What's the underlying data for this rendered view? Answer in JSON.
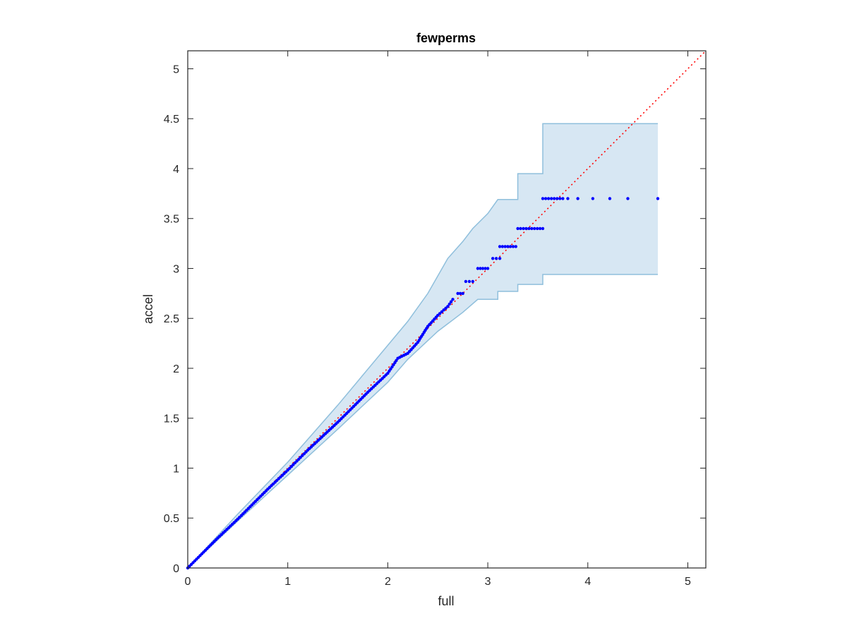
{
  "chart_data": {
    "type": "scatter",
    "title": "fewperms",
    "xlabel": "full",
    "ylabel": "accel",
    "xlim": [
      0,
      5.18
    ],
    "ylim": [
      0,
      5.18
    ],
    "xticks": [
      0,
      1,
      2,
      3,
      4,
      5
    ],
    "yticks": [
      0,
      0.5,
      1,
      1.5,
      2,
      2.5,
      3,
      3.5,
      4,
      4.5,
      5
    ],
    "xtick_labels": [
      "0",
      "1",
      "2",
      "3",
      "4",
      "5"
    ],
    "ytick_labels": [
      "0",
      "0.5",
      "1",
      "1.5",
      "2",
      "2.5",
      "3",
      "3.5",
      "4",
      "4.5",
      "5"
    ],
    "grid": false,
    "box": true,
    "reference_line": {
      "style": "dotted",
      "from": [
        0,
        0
      ],
      "to": [
        5.18,
        5.18
      ]
    },
    "band_upper": [
      [
        0,
        0
      ],
      [
        0.5,
        0.54
      ],
      [
        1,
        1.06
      ],
      [
        1.5,
        1.63
      ],
      [
        1.9,
        2.11
      ],
      [
        2.2,
        2.47
      ],
      [
        2.4,
        2.75
      ],
      [
        2.6,
        3.1
      ],
      [
        2.75,
        3.27
      ],
      [
        2.85,
        3.4
      ],
      [
        3.0,
        3.55
      ],
      [
        3.1,
        3.69
      ],
      [
        3.3,
        3.69
      ],
      [
        3.3,
        3.95
      ],
      [
        3.55,
        3.95
      ],
      [
        3.55,
        4.45
      ],
      [
        4.7,
        4.45
      ]
    ],
    "band_lower": [
      [
        4.7,
        2.94
      ],
      [
        3.55,
        2.94
      ],
      [
        3.55,
        2.84
      ],
      [
        3.3,
        2.84
      ],
      [
        3.3,
        2.77
      ],
      [
        3.1,
        2.77
      ],
      [
        3.1,
        2.69
      ],
      [
        2.9,
        2.69
      ],
      [
        2.75,
        2.56
      ],
      [
        2.5,
        2.37
      ],
      [
        2.2,
        2.09
      ],
      [
        2.0,
        1.86
      ],
      [
        1.5,
        1.39
      ],
      [
        1.0,
        0.93
      ],
      [
        0.5,
        0.47
      ],
      [
        0,
        0
      ]
    ],
    "points_quantile_curve": [
      [
        0,
        0
      ],
      [
        0.3,
        0.3
      ],
      [
        0.5,
        0.49
      ],
      [
        0.8,
        0.79
      ],
      [
        1.0,
        0.98
      ],
      [
        1.2,
        1.18
      ],
      [
        1.5,
        1.46
      ],
      [
        1.8,
        1.76
      ],
      [
        2.0,
        1.95
      ],
      [
        2.1,
        2.1
      ],
      [
        2.2,
        2.15
      ],
      [
        2.3,
        2.26
      ],
      [
        2.4,
        2.42
      ],
      [
        2.5,
        2.53
      ],
      [
        2.6,
        2.62
      ],
      [
        2.65,
        2.69
      ]
    ],
    "points_steps": [
      {
        "x_from": 2.7,
        "x_to": 2.75,
        "y": 2.75
      },
      {
        "x_from": 2.78,
        "x_to": 2.85,
        "y": 2.87
      },
      {
        "x_from": 2.9,
        "x_to": 3.0,
        "y": 3.0
      },
      {
        "x_from": 3.05,
        "x_to": 3.12,
        "y": 3.1
      },
      {
        "x_from": 3.12,
        "x_to": 3.28,
        "y": 3.22
      },
      {
        "x_from": 3.3,
        "x_to": 3.55,
        "y": 3.4
      },
      {
        "x_from": 3.55,
        "x_to": 3.75,
        "y": 3.7
      }
    ],
    "points_tail": [
      [
        3.8,
        3.7
      ],
      [
        3.9,
        3.7
      ],
      [
        4.05,
        3.7
      ],
      [
        4.22,
        3.7
      ],
      [
        4.4,
        3.7
      ],
      [
        4.7,
        3.7
      ]
    ],
    "colors": {
      "points": "#0000ff",
      "points_trace": "#8b0000",
      "reference_line": "#ff0000",
      "band_fill": "#d7e7f3",
      "band_edge": "#8fbfdc",
      "axes": "#262626"
    }
  }
}
